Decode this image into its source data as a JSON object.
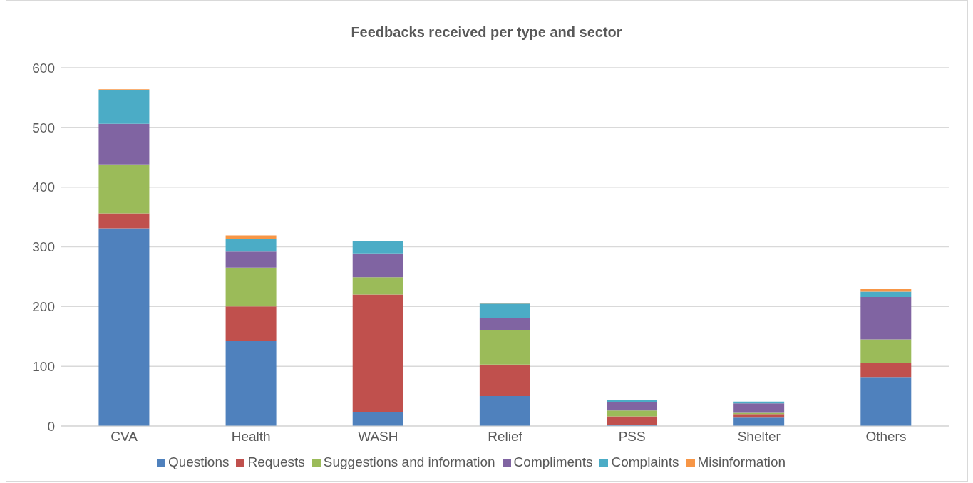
{
  "chart_data": {
    "type": "bar",
    "title": "Feedbacks received per type and sector",
    "categories": [
      "CVA",
      "Health",
      "WASH",
      "Relief",
      "PSS",
      "Shelter",
      "Others"
    ],
    "stacked": true,
    "series": [
      {
        "name": "Questions",
        "color": "#4f81bd",
        "values": [
          331,
          143,
          24,
          50,
          2,
          14,
          82
        ]
      },
      {
        "name": "Requests",
        "color": "#c0504d",
        "values": [
          25,
          57,
          196,
          53,
          14,
          6,
          24
        ]
      },
      {
        "name": "Suggestions and information",
        "color": "#9bbb59",
        "values": [
          82,
          65,
          29,
          58,
          10,
          2,
          39
        ]
      },
      {
        "name": "Compliments",
        "color": "#8064a2",
        "values": [
          68,
          27,
          40,
          19,
          14,
          16,
          71
        ]
      },
      {
        "name": "Complaints",
        "color": "#4bacc6",
        "values": [
          56,
          21,
          20,
          25,
          3,
          3,
          9
        ]
      },
      {
        "name": "Misinformation",
        "color": "#f79646",
        "values": [
          2,
          6,
          1,
          1,
          0,
          0,
          4
        ]
      }
    ],
    "ylim": [
      0,
      600
    ],
    "yticks": [
      0,
      100,
      200,
      300,
      400,
      500,
      600
    ],
    "grid": "y",
    "legend": "bottom"
  }
}
